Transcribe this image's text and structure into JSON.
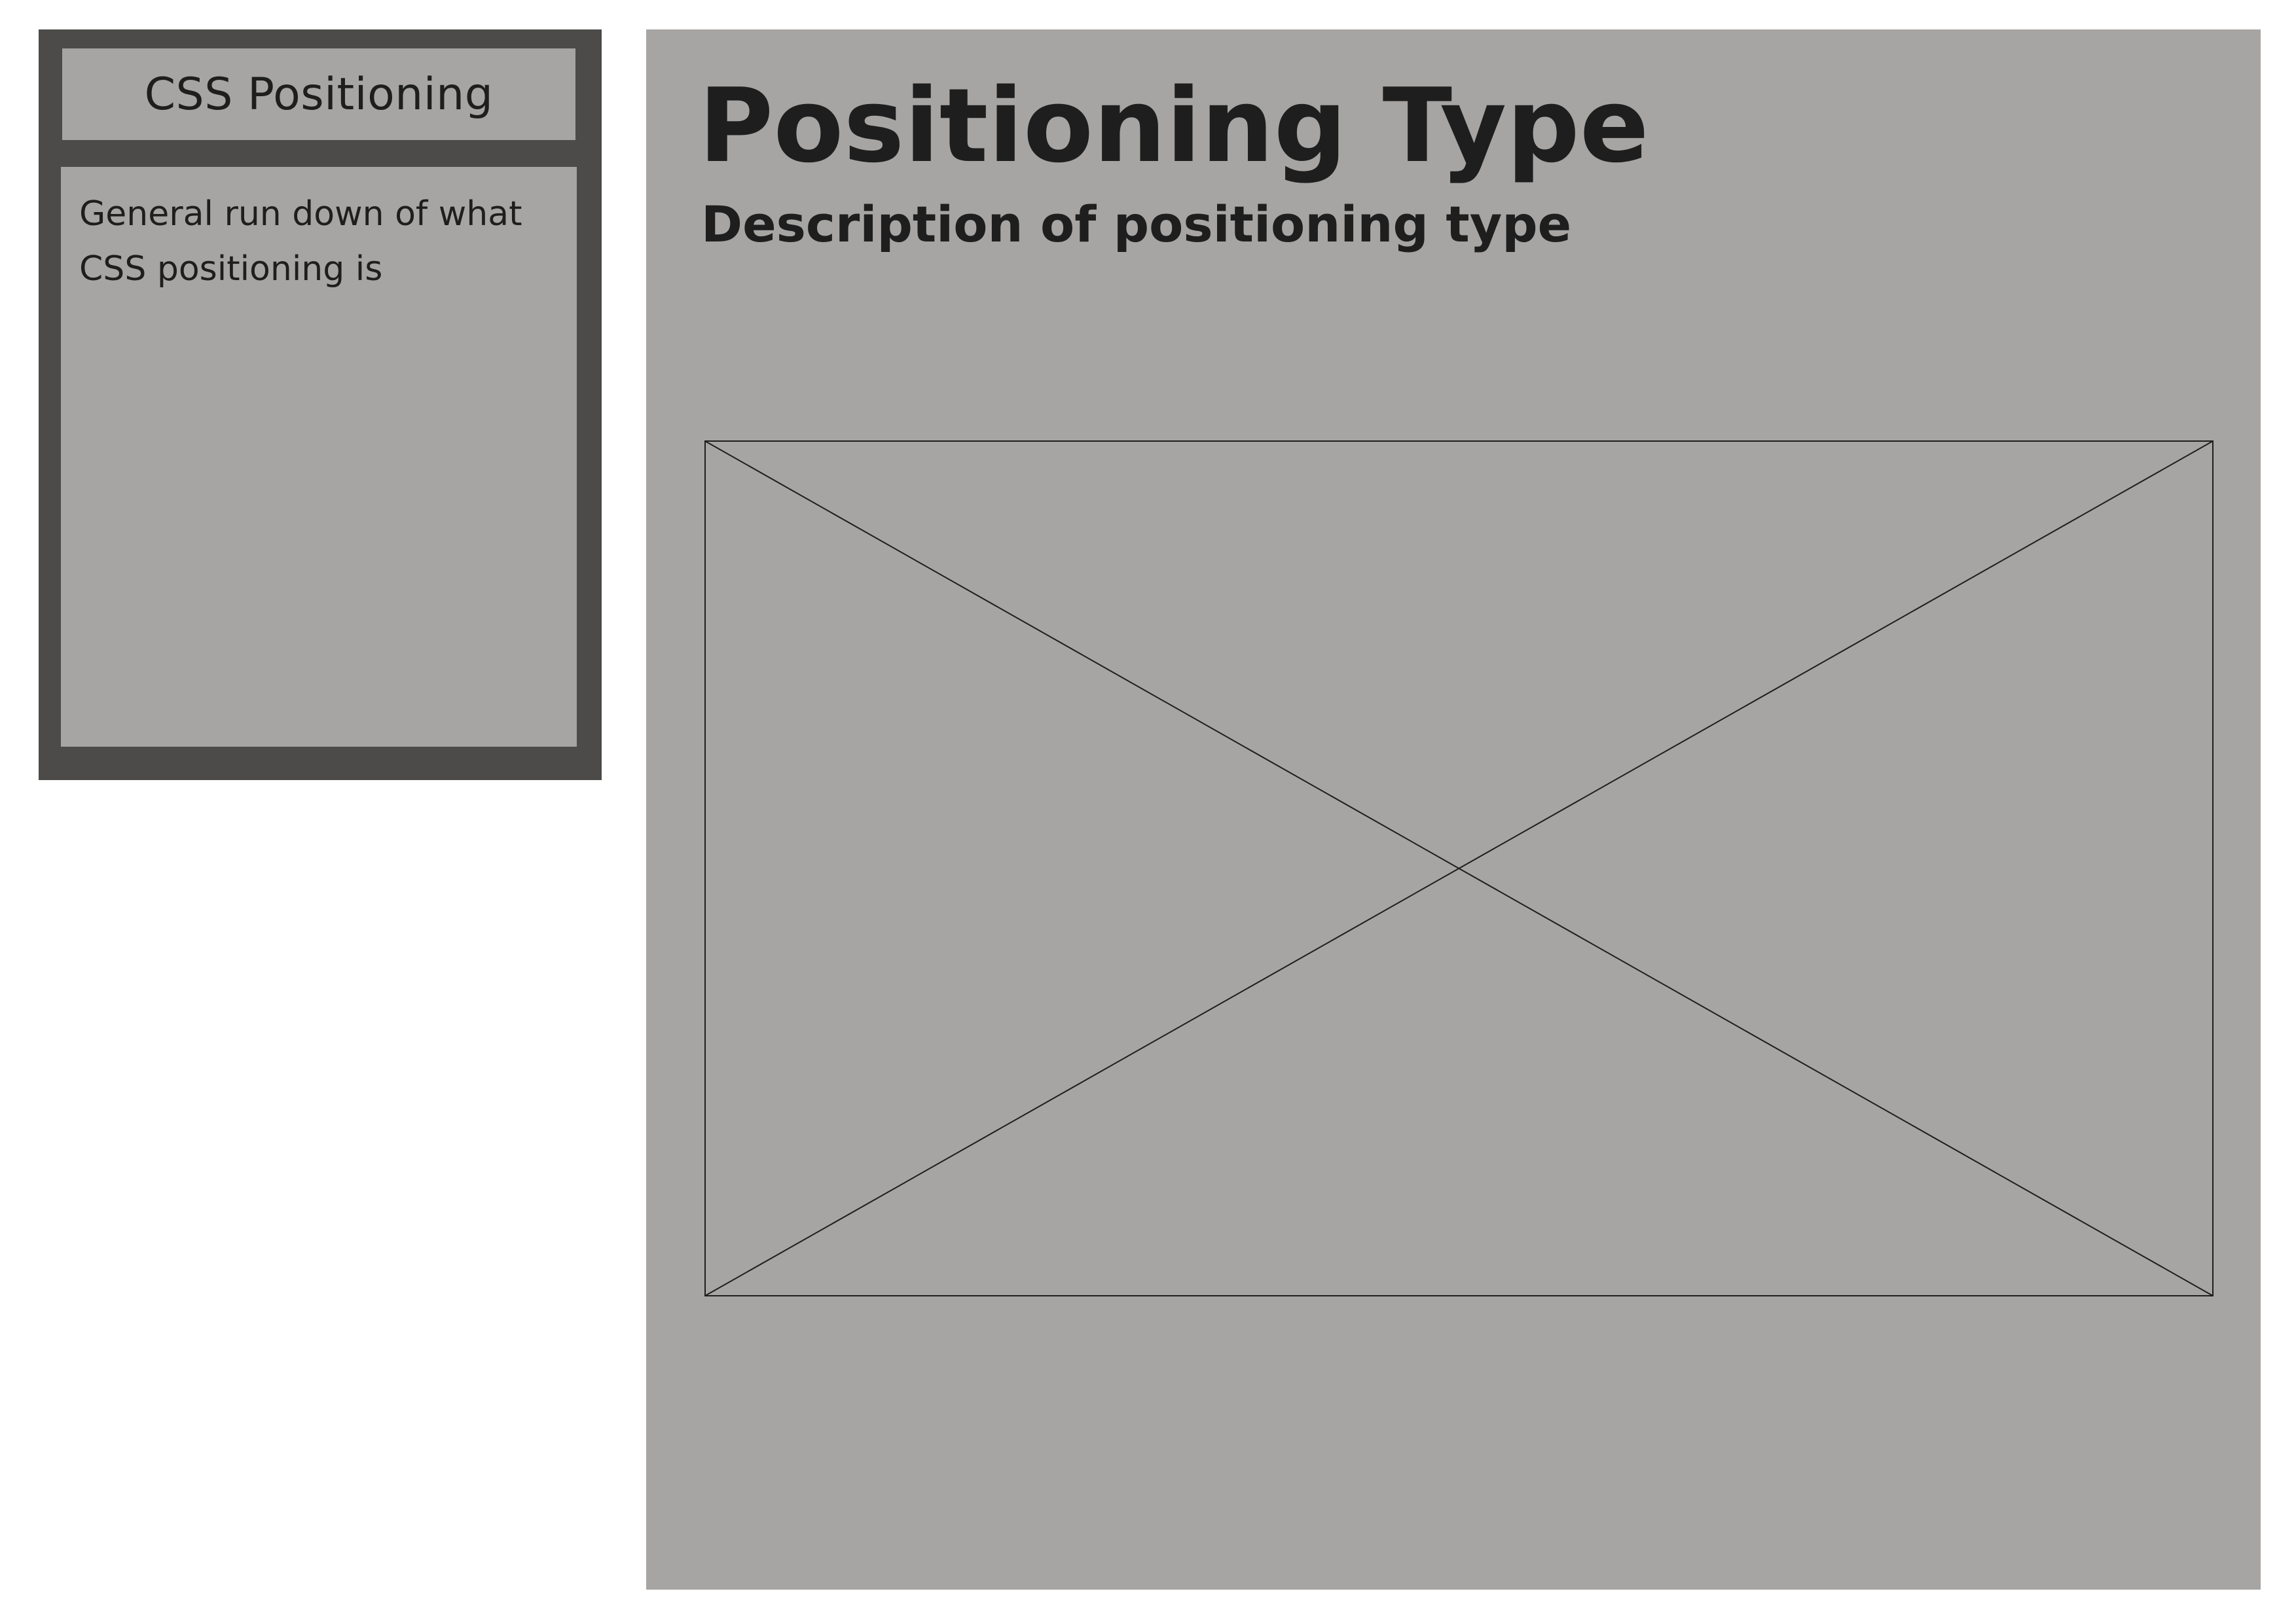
{
  "sidebar": {
    "title": "CSS Positioning",
    "description": "General run down of what CSS positioning is"
  },
  "main": {
    "title": "Positioning Type",
    "subtitle": "Description of positioning type",
    "image_placeholder_icon": "image-placeholder-icon"
  },
  "colors": {
    "page_background": "#ffffff",
    "panel_gray": "#a6a5a3",
    "sidebar_frame": "#4c4b49",
    "text": "#1e1e1e"
  }
}
